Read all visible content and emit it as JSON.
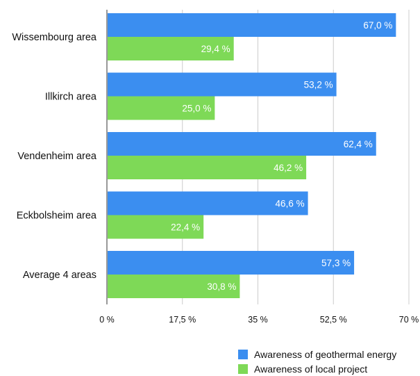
{
  "chart_data": {
    "type": "bar",
    "orientation": "horizontal",
    "categories": [
      "Wissembourg area",
      "Illkirch area",
      "Vendenheim area",
      "Eckbolsheim area",
      "Average 4 areas"
    ],
    "series": [
      {
        "name": "Awareness of geothermal energy",
        "color": "#3b8ef0",
        "values": [
          67.0,
          53.2,
          62.4,
          46.6,
          57.3
        ],
        "labels": [
          "67,0 %",
          "53,2 %",
          "62,4 %",
          "46,6 %",
          "57,3 %"
        ]
      },
      {
        "name": "Awareness of local project",
        "color": "#7ed957",
        "values": [
          29.4,
          25.0,
          46.2,
          22.4,
          30.8
        ],
        "labels": [
          "29,4 %",
          "25,0 %",
          "46,2 %",
          "22,4 %",
          "30,8 %"
        ]
      }
    ],
    "xlim": [
      0,
      70
    ],
    "xticks": [
      0,
      17.5,
      35,
      52.5,
      70
    ],
    "xtick_labels": [
      "0 %",
      "17,5 %",
      "35 %",
      "52,5 %",
      "70 %"
    ],
    "grid": true,
    "legend_position": "bottom-right"
  }
}
